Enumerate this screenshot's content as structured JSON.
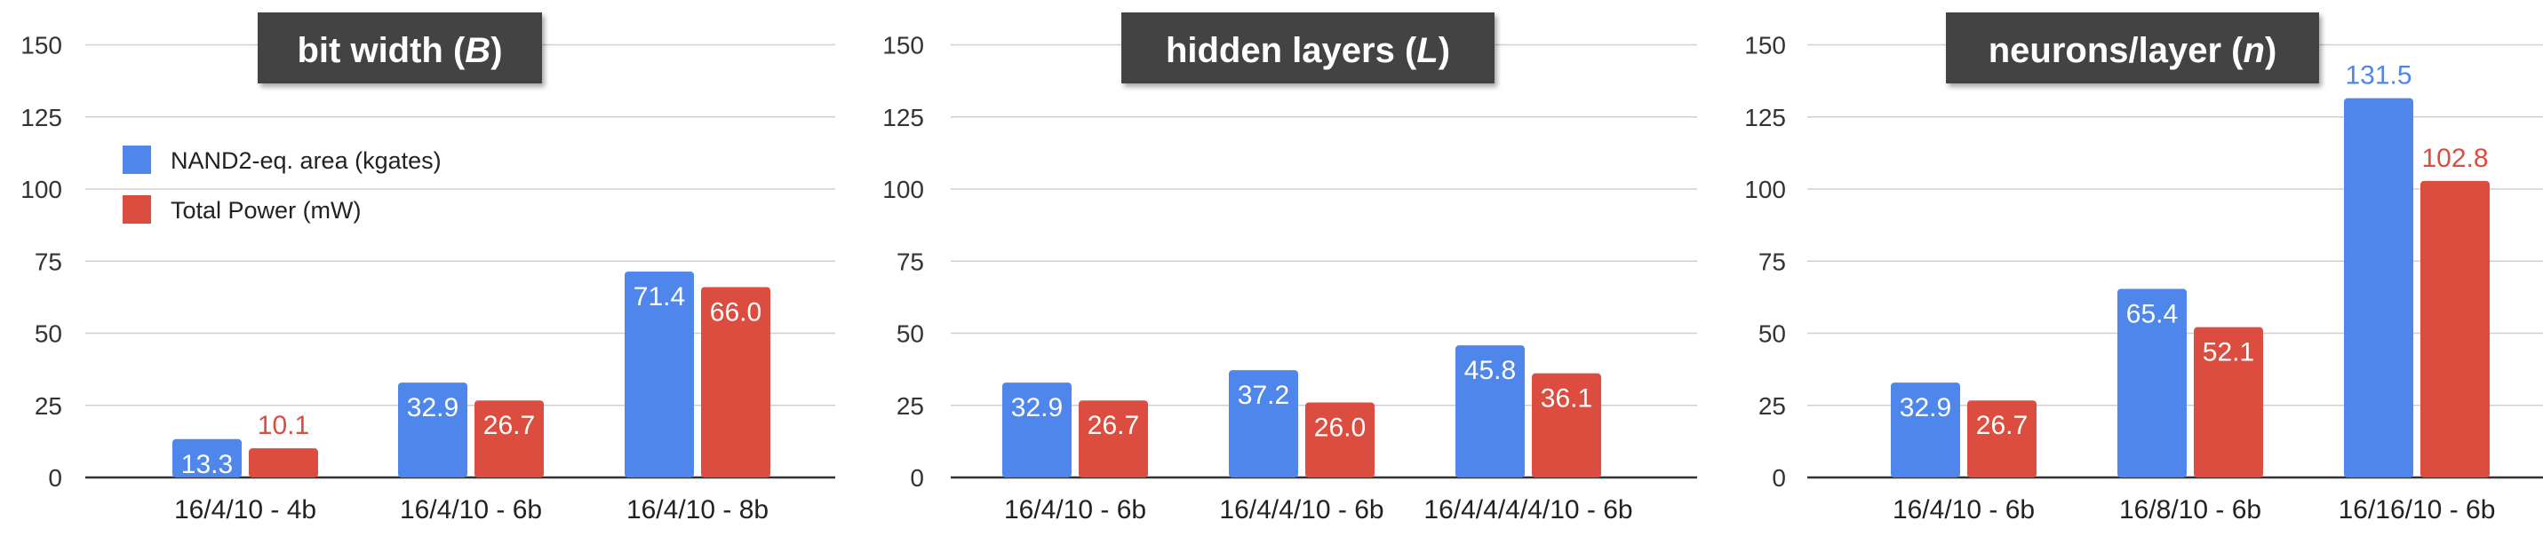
{
  "colors": {
    "area": "#4f86ec",
    "power": "#dc4d3f",
    "title_bg": "#434343",
    "grid": "#d0d0d0"
  },
  "legend": [
    {
      "label": "NAND2-eq. area (kgates)",
      "color": "#4f86ec"
    },
    {
      "label": "Total Power (mW)",
      "color": "#dc4d3f"
    }
  ],
  "chart_data": [
    {
      "type": "bar",
      "title": "bit width (B)",
      "title_main": "bit width (",
      "title_var": "B",
      "title_end": ")",
      "categories": [
        "16/4/10 - 4b",
        "16/4/10 - 6b",
        "16/4/10 - 8b"
      ],
      "series": [
        {
          "name": "NAND2-eq. area (kgates)",
          "values": [
            13.3,
            32.9,
            71.4
          ]
        },
        {
          "name": "Total Power (mW)",
          "values": [
            10.1,
            26.7,
            66.0
          ]
        }
      ],
      "value_labels": [
        [
          "13.3",
          "32.9",
          "71.4"
        ],
        [
          "10.1",
          "26.7",
          "66.0"
        ]
      ],
      "yticks": [
        "0",
        "25",
        "50",
        "75",
        "100",
        "125",
        "150"
      ],
      "ylim": [
        0,
        150
      ],
      "grid": true,
      "legend": "top-left"
    },
    {
      "type": "bar",
      "title": "hidden layers (L)",
      "title_main": "hidden layers (",
      "title_var": "L",
      "title_end": ")",
      "categories": [
        "16/4/10 - 6b",
        "16/4/4/10 - 6b",
        "16/4/4/4/4/10 - 6b"
      ],
      "series": [
        {
          "name": "NAND2-eq. area (kgates)",
          "values": [
            32.9,
            37.2,
            45.8
          ]
        },
        {
          "name": "Total Power (mW)",
          "values": [
            26.7,
            26.0,
            36.1
          ]
        }
      ],
      "value_labels": [
        [
          "32.9",
          "37.2",
          "45.8"
        ],
        [
          "26.7",
          "26.0",
          "36.1"
        ]
      ],
      "yticks": [
        "0",
        "25",
        "50",
        "75",
        "100",
        "125",
        "150"
      ],
      "ylim": [
        0,
        150
      ],
      "grid": true
    },
    {
      "type": "bar",
      "title": "neurons/layer (n)",
      "title_main": "neurons/layer (",
      "title_var": "n",
      "title_end": ")",
      "categories": [
        "16/4/10 - 6b",
        "16/8/10 - 6b",
        "16/16/10 - 6b"
      ],
      "series": [
        {
          "name": "NAND2-eq. area (kgates)",
          "values": [
            32.9,
            65.4,
            131.5
          ]
        },
        {
          "name": "Total Power (mW)",
          "values": [
            26.7,
            52.1,
            102.8
          ]
        }
      ],
      "value_labels": [
        [
          "32.9",
          "65.4",
          "131.5"
        ],
        [
          "26.7",
          "52.1",
          "102.8"
        ]
      ],
      "yticks": [
        "0",
        "25",
        "50",
        "75",
        "100",
        "125",
        "150"
      ],
      "ylim": [
        0,
        150
      ],
      "grid": true
    }
  ]
}
